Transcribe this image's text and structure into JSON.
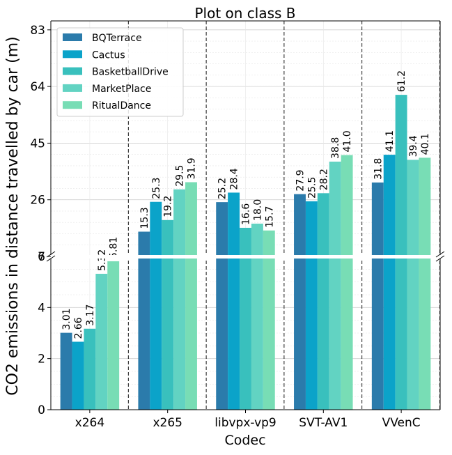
{
  "chart_data": {
    "type": "bar",
    "title": "Plot on class B",
    "xlabel": "Codec",
    "ylabel": "CO2 emissions in distance travelled by car (m)",
    "categories": [
      "x264",
      "x265",
      "libvpx-vp9",
      "SVT-AV1",
      "VVenC"
    ],
    "series": [
      {
        "name": "BQTerrace",
        "color": "#2b7bab",
        "values": [
          3.01,
          15.3,
          25.2,
          27.9,
          31.8
        ]
      },
      {
        "name": "Cactus",
        "color": "#0ba3c9",
        "values": [
          2.66,
          25.3,
          28.4,
          25.5,
          41.1
        ]
      },
      {
        "name": "BasketballDrive",
        "color": "#39c0bd",
        "values": [
          3.17,
          19.2,
          16.6,
          28.2,
          61.2
        ]
      },
      {
        "name": "MarketPlace",
        "color": "#62d3c2",
        "values": [
          5.32,
          29.5,
          18.0,
          38.8,
          39.4
        ]
      },
      {
        "name": "RitualDance",
        "color": "#78ddb5",
        "values": [
          5.81,
          31.9,
          15.7,
          41.0,
          40.1
        ]
      }
    ],
    "data_labels": [
      [
        "3.01",
        "15.3",
        "25.2",
        "27.9",
        "31.8"
      ],
      [
        "2.66",
        "25.3",
        "28.4",
        "25.5",
        "41.1"
      ],
      [
        "3.17",
        "19.2",
        "16.6",
        "28.2",
        "61.2"
      ],
      [
        "5.32",
        "29.5",
        "18.0",
        "38.8",
        "39.4"
      ],
      [
        "5.81",
        "31.9",
        "15.7",
        "41.0",
        "40.1"
      ]
    ],
    "broken_axis": {
      "lower": {
        "ylim": [
          0,
          6
        ],
        "yticks": [
          "0",
          "2",
          "4",
          "6"
        ]
      },
      "upper": {
        "ylim": [
          7,
          86
        ],
        "yticks": [
          "7",
          "26",
          "45",
          "64",
          "83"
        ]
      }
    },
    "grid": true,
    "legend_position": "top-left"
  }
}
